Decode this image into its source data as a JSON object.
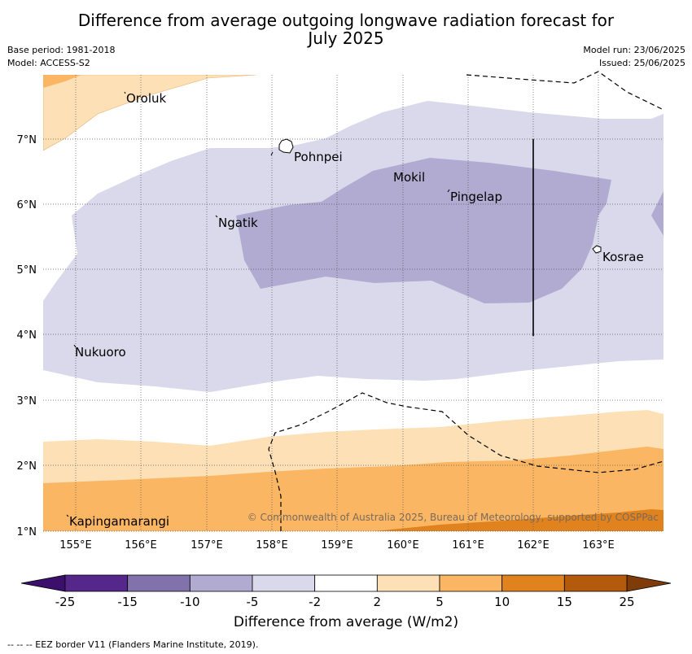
{
  "title_line1": "Difference from average outgoing longwave radiation forecast for",
  "title_line2": "July 2025",
  "base_period": "Base period: 1981-2018",
  "model": "Model: ACCESS-S2",
  "model_run": "Model run: 23/06/2025",
  "issued": "Issued: 25/06/2025",
  "copyright": "© Commonwealth of Australia 2025, Bureau of Meteorology, supported by COSPPac",
  "map": {
    "lat_ticks": [
      "1°N",
      "2°N",
      "3°N",
      "4°N",
      "5°N",
      "6°N",
      "7°N"
    ],
    "lon_ticks": [
      "155°E",
      "156°E",
      "157°E",
      "158°E",
      "159°E",
      "160°E",
      "161°E",
      "162°E",
      "163°E"
    ],
    "places": [
      {
        "name": "Oroluk",
        "lon": 155.5,
        "lat": 7.6
      },
      {
        "name": "Pohnpei",
        "lon": 158.2,
        "lat": 6.9
      },
      {
        "name": "Mokil",
        "lon": 159.8,
        "lat": 6.4
      },
      {
        "name": "Pingelap",
        "lon": 160.7,
        "lat": 6.2
      },
      {
        "name": "Ngatik",
        "lon": 157.15,
        "lat": 5.8
      },
      {
        "name": "Kosrae",
        "lon": 163.0,
        "lat": 5.3
      },
      {
        "name": "Nukuoro",
        "lon": 154.95,
        "lat": 3.85
      },
      {
        "name": "Kapingamarangi",
        "lon": 154.8,
        "lat": 1.2
      }
    ]
  },
  "colorbar": {
    "ticks": [
      "-25",
      "-15",
      "-10",
      "-5",
      "-2",
      "2",
      "5",
      "10",
      "15",
      "25"
    ],
    "colors": [
      "#55278a",
      "#8272ab",
      "#b1abd2",
      "#d9d9eb",
      "#ffffff",
      "#fde0b6",
      "#fbb664",
      "#e0821d",
      "#b45a0d"
    ],
    "under_color": "#3b0f6b",
    "over_color": "#7f3c0a",
    "label": "Difference from average (W/m2)"
  },
  "footnote": "--  --  -- EEZ border V11 (Flanders Marine Institute, 2019)."
}
